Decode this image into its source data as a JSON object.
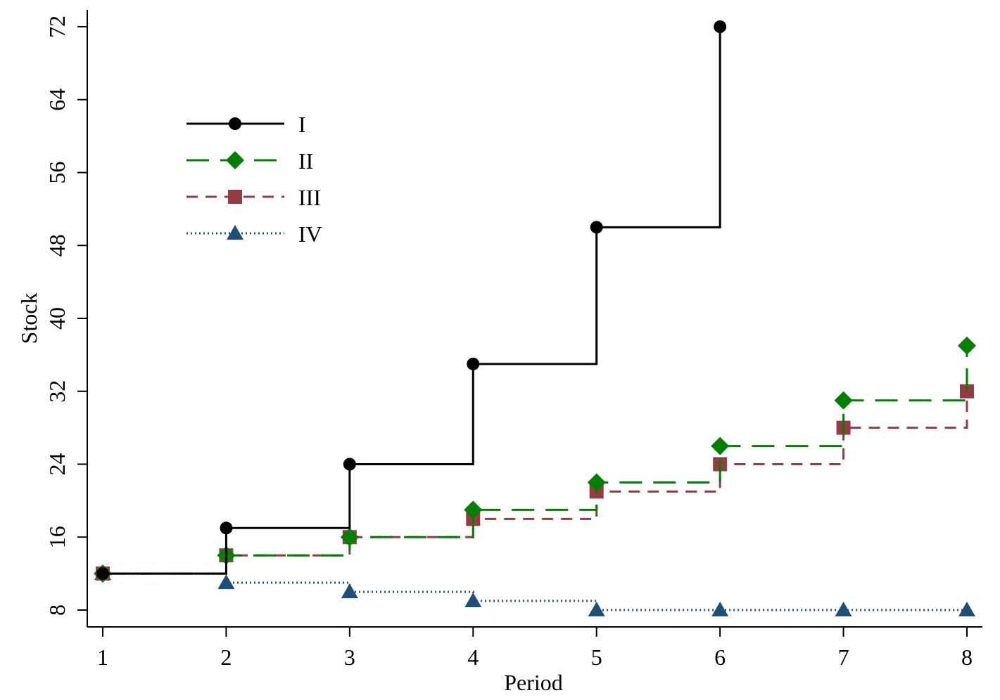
{
  "chart_data": {
    "type": "line",
    "step": true,
    "xlabel": "Period",
    "ylabel": "Stock",
    "x": [
      1,
      2,
      3,
      4,
      5,
      6,
      7,
      8
    ],
    "xticks": [
      "1",
      "2",
      "3",
      "4",
      "5",
      "6",
      "7",
      "8"
    ],
    "yticks": [
      "8",
      "16",
      "24",
      "32",
      "40",
      "48",
      "56",
      "64",
      "72"
    ],
    "xlim": [
      1,
      8
    ],
    "ylim": [
      8,
      72
    ],
    "grid": false,
    "legend_position": "upper-left",
    "series": [
      {
        "name": "I",
        "color": "#000000",
        "marker": "circle",
        "dash": "solid",
        "values": [
          12,
          17,
          24,
          35,
          50,
          72,
          null,
          null
        ]
      },
      {
        "name": "II",
        "color": "#008000",
        "marker": "diamond",
        "dash": "long-dash",
        "values": [
          12,
          14,
          16,
          19,
          22,
          26,
          31,
          37
        ]
      },
      {
        "name": "III",
        "color": "#943b43",
        "marker": "square",
        "dash": "short-dash",
        "values": [
          12,
          14,
          16,
          18,
          21,
          24,
          28,
          32
        ]
      },
      {
        "name": "IV",
        "color": "#1f4e79",
        "marker": "triangle",
        "dash": "dotted",
        "values": [
          12,
          11,
          10,
          9,
          8,
          8,
          8,
          8
        ]
      }
    ]
  }
}
